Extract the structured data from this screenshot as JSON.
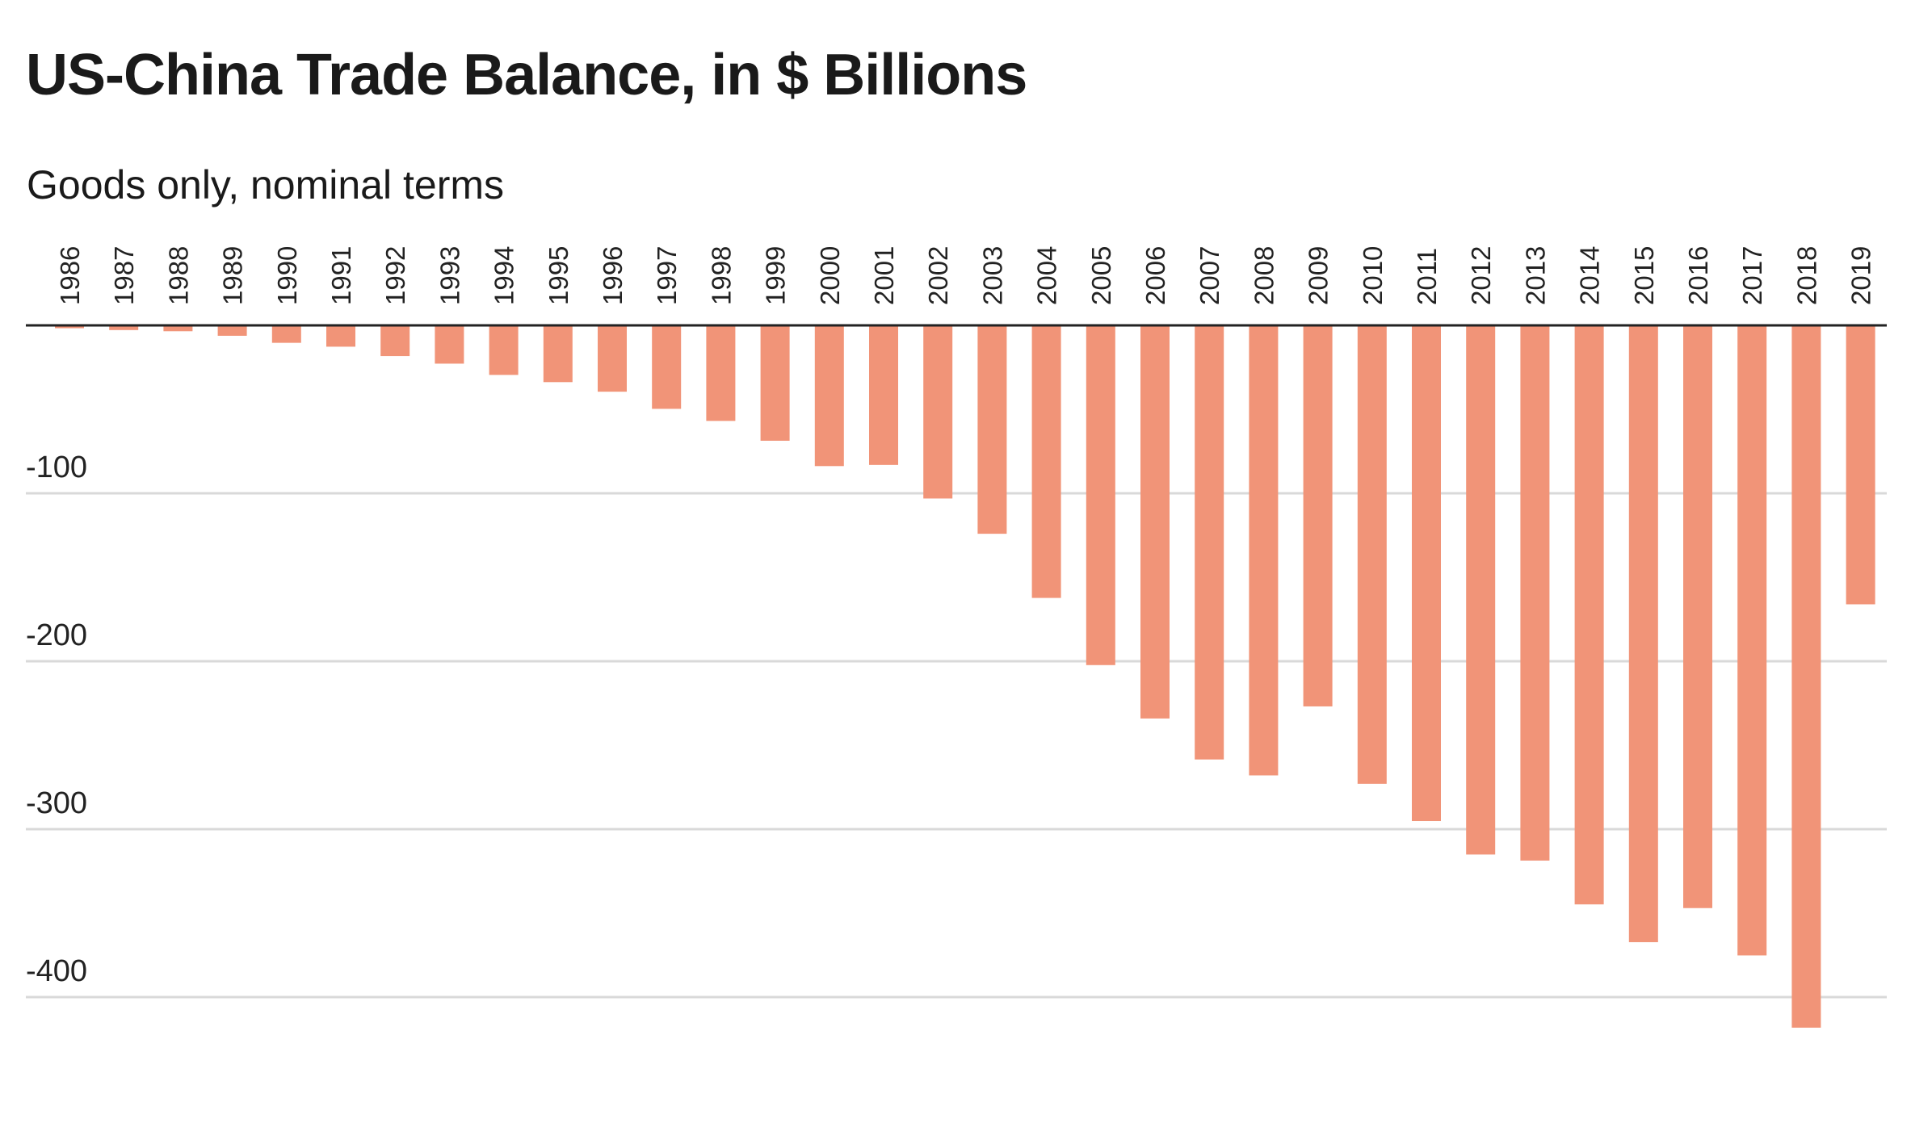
{
  "chart_data": {
    "type": "bar",
    "title": "US-China Trade Balance, in $ Billions",
    "subtitle": "Goods only, nominal terms",
    "xlabel": "",
    "ylabel": "",
    "categories": [
      "1986",
      "1987",
      "1988",
      "1989",
      "1990",
      "1991",
      "1992",
      "1993",
      "1994",
      "1995",
      "1996",
      "1997",
      "1998",
      "1999",
      "2000",
      "2001",
      "2002",
      "2003",
      "2004",
      "2005",
      "2006",
      "2007",
      "2008",
      "2009",
      "2010",
      "2011",
      "2012",
      "2013",
      "2014",
      "2015",
      "2016",
      "2017",
      "2018",
      "2019"
    ],
    "series": [
      {
        "values": [
          -1.7,
          -2.8,
          -3.5,
          -6.2,
          -10.4,
          -12.7,
          -18.3,
          -22.8,
          -29.5,
          -33.8,
          -39.5,
          -49.7,
          -56.9,
          -68.7,
          -83.8,
          -83.1,
          -103.1,
          -124.1,
          -162.3,
          -202.3,
          -234.1,
          -258.5,
          -268.0,
          -226.9,
          -273.0,
          -295.2,
          -315.1,
          -318.7,
          -344.8,
          -367.3,
          -347.0,
          -375.2,
          -418.2,
          -166.1
        ],
        "color": "#f19478"
      }
    ],
    "ylim": [
      -450,
      0
    ],
    "yticks": [
      -100,
      -200,
      -300,
      -400
    ],
    "ytick_labels": [
      "-100",
      "-200",
      "-300",
      "-400"
    ],
    "grid": true,
    "x_axis_position": "top",
    "x_tick_rotation": "vertical",
    "colors": {
      "bar": "#f19478",
      "gridline": "#d9d9d9",
      "zero_line": "#222222"
    }
  }
}
